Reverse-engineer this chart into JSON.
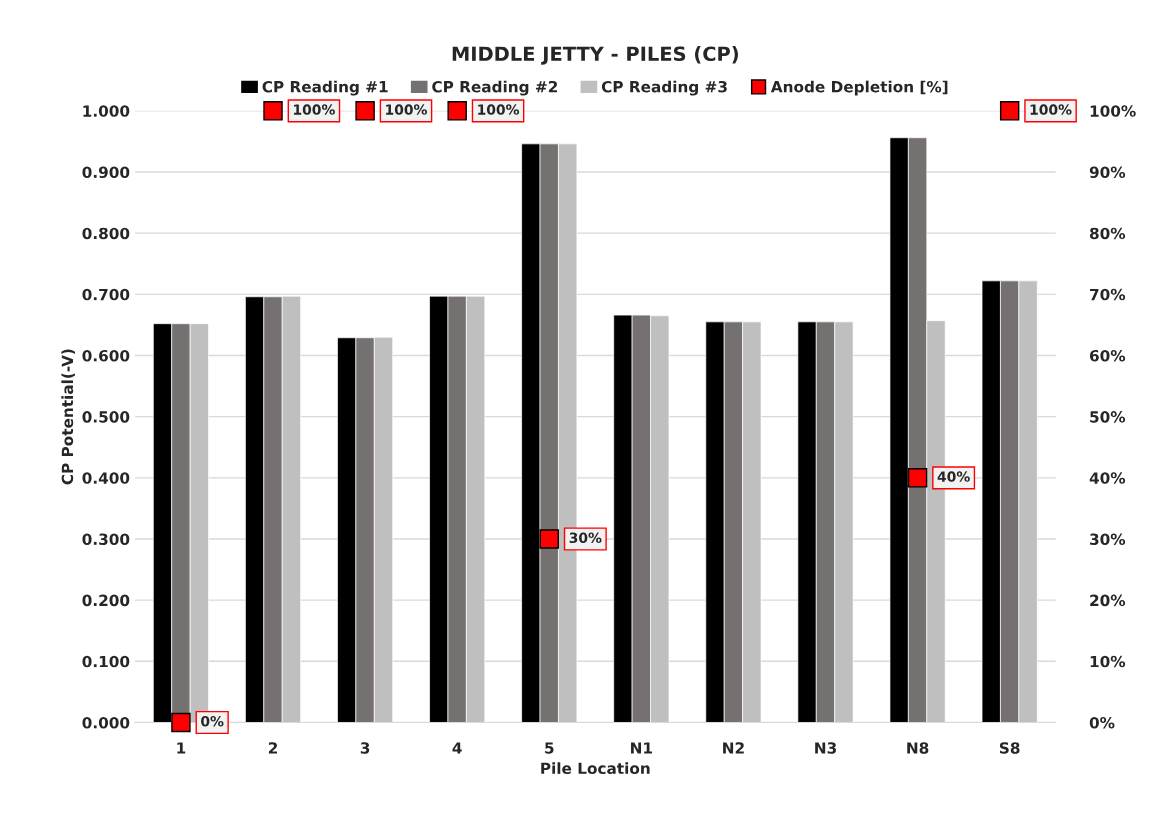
{
  "chart_data": {
    "type": "bar",
    "title": "MIDDLE JETTY - PILES (CP)",
    "xlabel": "Pile Location",
    "ylabel": "CP Potential(-V)",
    "categories": [
      "1",
      "2",
      "3",
      "4",
      "5",
      "N1",
      "N2",
      "N3",
      "N8",
      "S8"
    ],
    "series": [
      {
        "name": "CP Reading #1",
        "color": "#000000",
        "values": [
          0.652,
          0.696,
          0.629,
          0.697,
          0.946,
          0.666,
          0.655,
          0.655,
          0.956,
          0.722
        ]
      },
      {
        "name": "CP Reading #2",
        "color": "#767171",
        "values": [
          0.652,
          0.696,
          0.629,
          0.697,
          0.946,
          0.666,
          0.655,
          0.655,
          0.956,
          0.722
        ]
      },
      {
        "name": "CP Reading #3",
        "color": "#bfbfbf",
        "values": [
          0.652,
          0.697,
          0.63,
          0.697,
          0.946,
          0.665,
          0.655,
          0.655,
          0.657,
          0.722
        ]
      },
      {
        "name": "Anode Depletion [%]",
        "type": "scatter",
        "axis": "y2",
        "color": "#ff0000",
        "marker": "square",
        "values": [
          0,
          100,
          100,
          100,
          30,
          null,
          null,
          null,
          40,
          100
        ],
        "value_labels": [
          "0%",
          "100%",
          "100%",
          "100%",
          "30%",
          null,
          null,
          null,
          "40%",
          "100%"
        ]
      }
    ],
    "ylim": [
      0,
      1
    ],
    "yticks": [
      {
        "value": 0,
        "label": "0.000"
      },
      {
        "value": 0.1,
        "label": "0.100"
      },
      {
        "value": 0.2,
        "label": "0.200"
      },
      {
        "value": 0.3,
        "label": "0.300"
      },
      {
        "value": 0.4,
        "label": "0.400"
      },
      {
        "value": 0.5,
        "label": "0.500"
      },
      {
        "value": 0.6,
        "label": "0.600"
      },
      {
        "value": 0.7,
        "label": "0.700"
      },
      {
        "value": 0.8,
        "label": "0.800"
      },
      {
        "value": 0.9,
        "label": "0.900"
      },
      {
        "value": 1,
        "label": "1.000"
      }
    ],
    "y2lim": [
      0,
      100
    ],
    "y2ticks": [
      {
        "value": 0,
        "label": "0%"
      },
      {
        "value": 10,
        "label": "10%"
      },
      {
        "value": 20,
        "label": "20%"
      },
      {
        "value": 30,
        "label": "30%"
      },
      {
        "value": 40,
        "label": "40%"
      },
      {
        "value": 50,
        "label": "50%"
      },
      {
        "value": 60,
        "label": "60%"
      },
      {
        "value": 70,
        "label": "70%"
      },
      {
        "value": 80,
        "label": "80%"
      },
      {
        "value": 90,
        "label": "90%"
      },
      {
        "value": 100,
        "label": "100%"
      }
    ],
    "grid": "y",
    "legend": "top"
  }
}
